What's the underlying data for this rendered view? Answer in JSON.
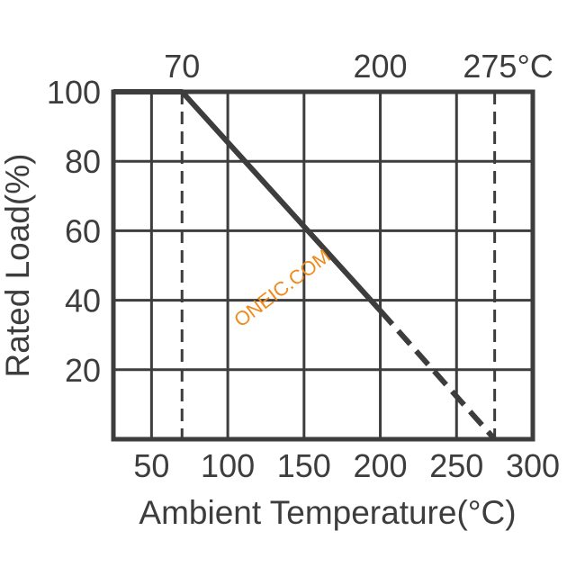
{
  "chart_data": {
    "type": "line",
    "xlabel": "Ambient Temperature(°C)",
    "ylabel": "Rated Load(%)",
    "xlim": [
      25,
      300
    ],
    "ylim": [
      0,
      100
    ],
    "x_ticks": [
      50,
      100,
      150,
      200,
      250,
      300
    ],
    "x_tick_labels": [
      "50",
      "100",
      "150",
      "200",
      "250",
      "300"
    ],
    "y_ticks": [
      20,
      40,
      60,
      80,
      100
    ],
    "y_tick_labels": [
      "20",
      "40",
      "60",
      "80",
      "100"
    ],
    "grid": true,
    "series": [
      {
        "solid_points": [
          {
            "x": 25,
            "y": 100
          },
          {
            "x": 70,
            "y": 100
          },
          {
            "x": 200,
            "y": 37
          }
        ],
        "dashed_points": [
          {
            "x": 200,
            "y": 37
          },
          {
            "x": 275,
            "y": 0
          }
        ]
      }
    ],
    "reference_lines": [
      {
        "x": 70,
        "label": "70",
        "style": "dashed"
      },
      {
        "x": 200,
        "label": "200",
        "style": "none"
      },
      {
        "x": 275,
        "label": "275°C",
        "style": "dashed"
      }
    ],
    "colors": {
      "line": "#3d3d3d",
      "grid": "#3d3d3d",
      "watermark": "#f08a1c"
    }
  },
  "watermark": "ONEIC.COM"
}
